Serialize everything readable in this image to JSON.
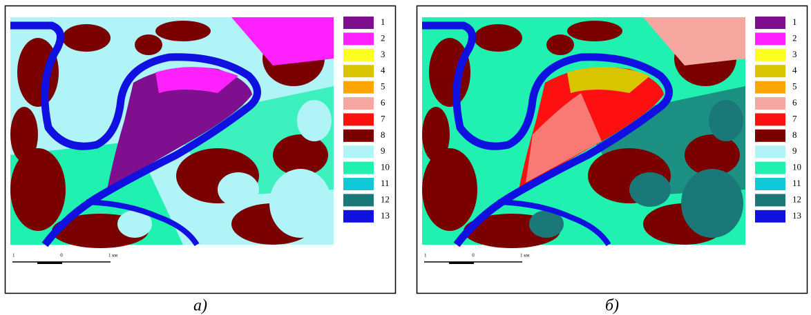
{
  "panels": [
    {
      "caption": "а)",
      "legend": [
        {
          "label": "1",
          "color": "#7f0f8f"
        },
        {
          "label": "2",
          "color": "#ff22ff"
        },
        {
          "label": "3",
          "color": "#ffff22"
        },
        {
          "label": "4",
          "color": "#d8c400"
        },
        {
          "label": "5",
          "color": "#ffa500"
        },
        {
          "label": "6",
          "color": "#f6a8a0"
        },
        {
          "label": "7",
          "color": "#ff1010"
        },
        {
          "label": "8",
          "color": "#7a0000"
        },
        {
          "label": "9",
          "color": "#b0f4f8"
        },
        {
          "label": "10",
          "color": "#20f0b0"
        },
        {
          "label": "11",
          "color": "#10c8d8"
        },
        {
          "label": "12",
          "color": "#1a7878"
        },
        {
          "label": "13",
          "color": "#1010e0"
        }
      ],
      "scale": [
        "1",
        "0",
        "1 км"
      ]
    },
    {
      "caption": "б)",
      "legend": [
        {
          "label": "1",
          "color": "#7f0f8f"
        },
        {
          "label": "2",
          "color": "#ff22ff"
        },
        {
          "label": "3",
          "color": "#ffff22"
        },
        {
          "label": "4",
          "color": "#d8c400"
        },
        {
          "label": "5",
          "color": "#ffa500"
        },
        {
          "label": "6",
          "color": "#f6a8a0"
        },
        {
          "label": "7",
          "color": "#ff1010"
        },
        {
          "label": "8",
          "color": "#7a0000"
        },
        {
          "label": "9",
          "color": "#b0f4f8"
        },
        {
          "label": "10",
          "color": "#20f0b0"
        },
        {
          "label": "11",
          "color": "#10c8d8"
        },
        {
          "label": "12",
          "color": "#1a7878"
        },
        {
          "label": "13",
          "color": "#1010e0"
        }
      ],
      "scale": [
        "1",
        "0",
        "1 км"
      ]
    }
  ]
}
